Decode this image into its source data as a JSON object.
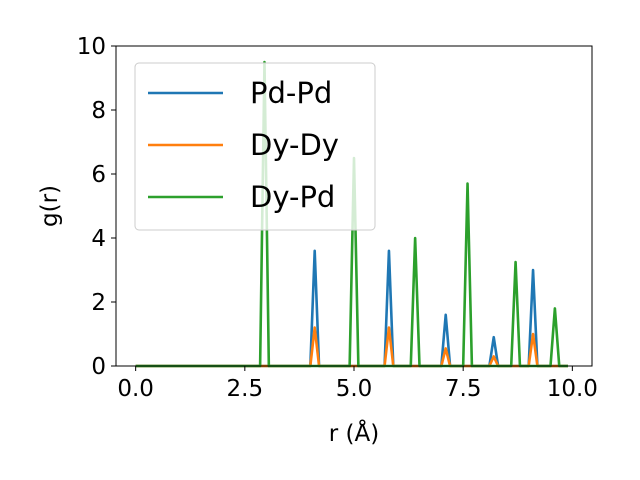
{
  "chart_data": {
    "type": "line",
    "title": "",
    "xlabel": "r (Å)",
    "ylabel": "g(r)",
    "xlim": [
      -0.45,
      10.45
    ],
    "ylim": [
      0,
      10
    ],
    "xticks": [
      "0.0",
      "2.5",
      "5.0",
      "7.5",
      "10.0"
    ],
    "yticks": [
      "0",
      "2",
      "4",
      "6",
      "8",
      "10"
    ],
    "grid": false,
    "legend_position": "top-left",
    "peak_half_width": 0.1,
    "series": [
      {
        "name": "Pd-Pd",
        "color": "#1f77b4",
        "peaks": [
          [
            4.1,
            3.6
          ],
          [
            5.8,
            3.6
          ],
          [
            7.1,
            1.6
          ],
          [
            8.2,
            0.9
          ],
          [
            9.1,
            3.0
          ]
        ]
      },
      {
        "name": "Dy-Dy",
        "color": "#ff7f0e",
        "peaks": [
          [
            4.1,
            1.2
          ],
          [
            5.8,
            1.2
          ],
          [
            7.1,
            0.55
          ],
          [
            8.2,
            0.3
          ],
          [
            9.1,
            1.0
          ]
        ]
      },
      {
        "name": "Dy-Pd",
        "color": "#2ca02c",
        "peaks": [
          [
            2.95,
            9.5
          ],
          [
            5.0,
            6.5
          ],
          [
            6.4,
            4.0
          ],
          [
            7.6,
            5.7
          ],
          [
            8.7,
            3.25
          ],
          [
            9.6,
            1.8
          ]
        ]
      }
    ],
    "x_start": 0.0,
    "x_end": 9.9
  }
}
